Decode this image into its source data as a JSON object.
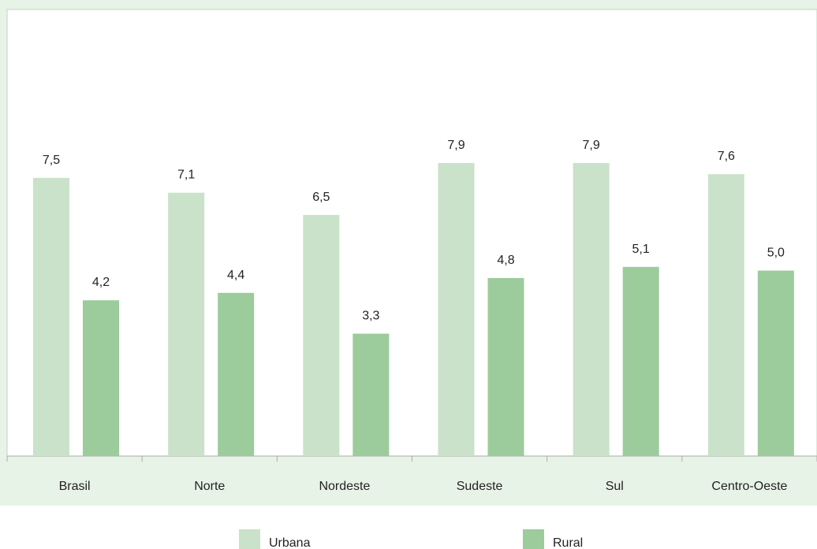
{
  "chart_data": {
    "type": "bar",
    "categories": [
      "Brasil",
      "Norte",
      "Nordeste",
      "Sudeste",
      "Sul",
      "Centro-Oeste"
    ],
    "series": [
      {
        "name": "Urbana",
        "values": [
          7.5,
          7.1,
          6.5,
          7.9,
          7.9,
          7.6
        ],
        "labels": [
          "7,5",
          "7,1",
          "6,5",
          "7,9",
          "7,9",
          "7,6"
        ],
        "color": "#c9e2c9"
      },
      {
        "name": "Rural",
        "values": [
          4.2,
          4.4,
          3.3,
          4.8,
          5.1,
          5.0
        ],
        "labels": [
          "4,2",
          "4,4",
          "3,3",
          "4,8",
          "5,1",
          "5,0"
        ],
        "color": "#9ccb9c"
      }
    ],
    "ylim": [
      0,
      12
    ],
    "grid": false,
    "legend_position": "bottom",
    "background_color": "#e8f3e8",
    "plot_color": "#ffffff",
    "axis_color": "#aaaaaa"
  }
}
